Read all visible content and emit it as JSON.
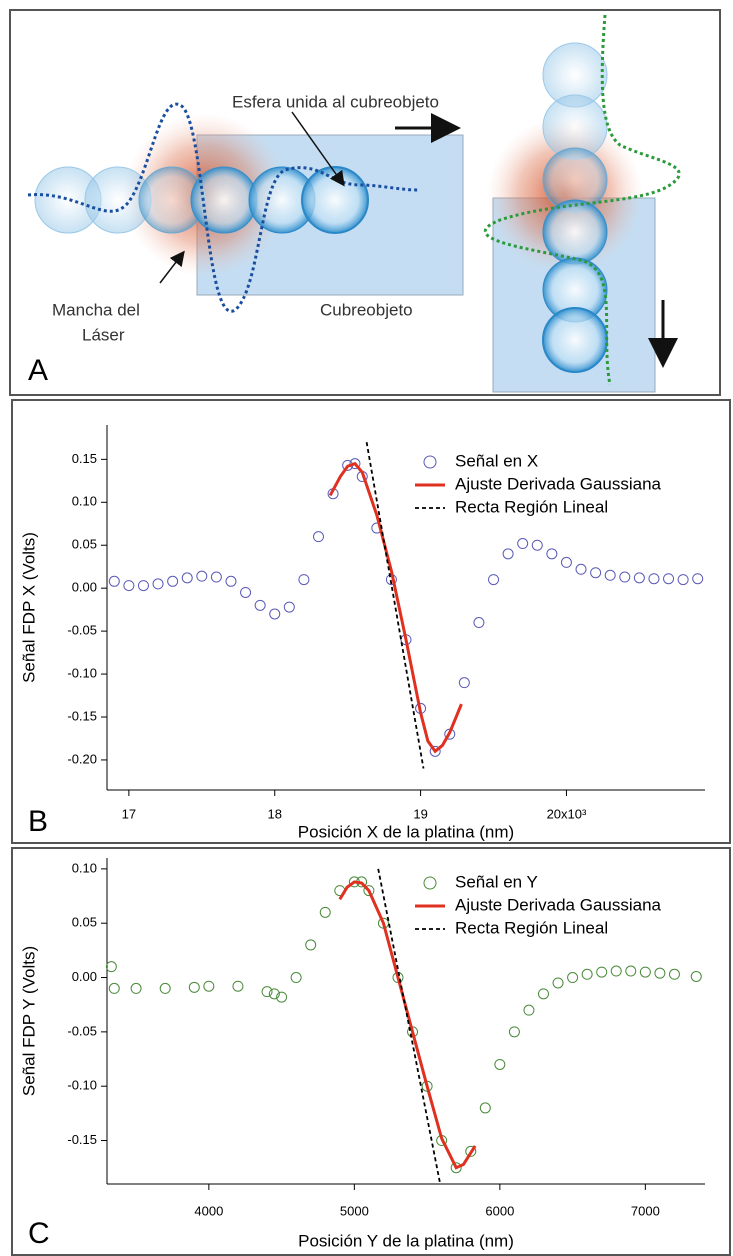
{
  "diagram": {
    "panel_label": "A",
    "labels": {
      "sphere": "Esfera unida al cubreobjeto",
      "laser_spot": [
        "Mancha del",
        "Láser"
      ],
      "coverslip": "Cubreobjeto"
    }
  },
  "chart_data": [
    {
      "type": "scatter",
      "panel_label": "B",
      "x_label": "Posición X de la platina (nm)",
      "y_label": "Señal FDP X (Volts)",
      "xlim": [
        16.85,
        20.95
      ],
      "xticks": [
        17,
        18,
        19,
        {
          "value": 20,
          "label": "20x10³"
        }
      ],
      "ylim": [
        -0.235,
        0.19
      ],
      "yticks": [
        0.15,
        {
          "value": 0.1,
          "label": "0.10"
        },
        0.05,
        {
          "value": 0,
          "label": "0.00"
        },
        -0.05,
        {
          "value": -0.1,
          "label": "-0.10"
        },
        -0.15,
        {
          "value": -0.2,
          "label": "-0.20"
        }
      ],
      "legend": "upper right",
      "series": [
        {
          "name": "Señal en X",
          "color": "#5a5ab8",
          "mark": "circle",
          "x": [
            16.9,
            17.0,
            17.1,
            17.2,
            17.3,
            17.4,
            17.5,
            17.6,
            17.7,
            17.8,
            17.9,
            18.0,
            18.1,
            18.2,
            18.3,
            18.4,
            18.5,
            18.55,
            18.6,
            18.7,
            18.8,
            18.9,
            19.0,
            19.1,
            19.2,
            19.3,
            19.4,
            19.5,
            19.6,
            19.7,
            19.8,
            19.9,
            20.0,
            20.1,
            20.2,
            20.3,
            20.4,
            20.5,
            20.6,
            20.7,
            20.8,
            20.9
          ],
          "values": [
            0.008,
            0.003,
            0.003,
            0.005,
            0.008,
            0.012,
            0.014,
            0.013,
            0.008,
            -0.005,
            -0.02,
            -0.03,
            -0.022,
            0.01,
            0.06,
            0.11,
            0.143,
            0.145,
            0.13,
            0.07,
            0.01,
            -0.06,
            -0.14,
            -0.19,
            -0.17,
            -0.11,
            -0.04,
            0.01,
            0.04,
            0.052,
            0.05,
            0.04,
            0.03,
            0.022,
            0.018,
            0.015,
            0.013,
            0.012,
            0.011,
            0.011,
            0.01,
            0.011
          ]
        },
        {
          "name": "Ajuste Derivada Gaussiana",
          "color": "#e03020",
          "mark": "line",
          "x": [
            18.38,
            18.45,
            18.5,
            18.55,
            18.6,
            18.7,
            18.8,
            18.9,
            19.0,
            19.05,
            19.1,
            19.15,
            19.2,
            19.28
          ],
          "values": [
            0.108,
            0.13,
            0.142,
            0.145,
            0.135,
            0.085,
            0.02,
            -0.06,
            -0.145,
            -0.178,
            -0.19,
            -0.183,
            -0.168,
            -0.135
          ]
        },
        {
          "name": "Recta Región Lineal",
          "color": "#000000",
          "mark": "dashed",
          "x": [
            18.63,
            19.02
          ],
          "values": [
            0.17,
            -0.21
          ]
        }
      ]
    },
    {
      "type": "scatter",
      "panel_label": "C",
      "x_label": "Posición Y de la platina (nm)",
      "y_label": "Señal FDP Y (Volts)",
      "xlim": [
        3300,
        7410
      ],
      "xticks": [
        4000,
        5000,
        6000,
        7000
      ],
      "ylim": [
        -0.19,
        0.11
      ],
      "yticks": [
        {
          "value": 0.1,
          "label": "0.10"
        },
        0.05,
        {
          "value": 0,
          "label": "0.00"
        },
        -0.05,
        {
          "value": -0.1,
          "label": "-0.10"
        },
        -0.15
      ],
      "legend": "upper right",
      "series": [
        {
          "name": "Señal en Y",
          "color": "#4a8a3a",
          "mark": "circle",
          "x": [
            3330,
            3350,
            3500,
            3700,
            3900,
            4000,
            4200,
            4400,
            4450,
            4500,
            4600,
            4700,
            4800,
            4900,
            5000,
            5050,
            5100,
            5200,
            5300,
            5400,
            5500,
            5600,
            5700,
            5800,
            5900,
            6000,
            6100,
            6200,
            6300,
            6400,
            6500,
            6600,
            6700,
            6800,
            6900,
            7000,
            7100,
            7200,
            7350
          ],
          "values": [
            0.01,
            -0.01,
            -0.01,
            -0.01,
            -0.009,
            -0.008,
            -0.008,
            -0.013,
            -0.015,
            -0.018,
            0.0,
            0.03,
            0.06,
            0.08,
            0.088,
            0.088,
            0.08,
            0.05,
            0.0,
            -0.05,
            -0.1,
            -0.15,
            -0.175,
            -0.16,
            -0.12,
            -0.08,
            -0.05,
            -0.03,
            -0.015,
            -0.005,
            0.0,
            0.003,
            0.005,
            0.006,
            0.006,
            0.005,
            0.004,
            0.003,
            0.001
          ]
        },
        {
          "name": "Ajuste Derivada Gaussiana",
          "color": "#e03020",
          "mark": "line",
          "x": [
            4900,
            4950,
            5000,
            5050,
            5100,
            5200,
            5300,
            5400,
            5500,
            5600,
            5700,
            5750,
            5830
          ],
          "values": [
            0.072,
            0.083,
            0.088,
            0.087,
            0.08,
            0.05,
            0.0,
            -0.05,
            -0.1,
            -0.148,
            -0.175,
            -0.172,
            -0.155
          ]
        },
        {
          "name": "Recta Región Lineal",
          "color": "#000000",
          "mark": "dashed",
          "x": [
            5164,
            5590
          ],
          "values": [
            0.1,
            -0.19
          ]
        }
      ]
    }
  ]
}
